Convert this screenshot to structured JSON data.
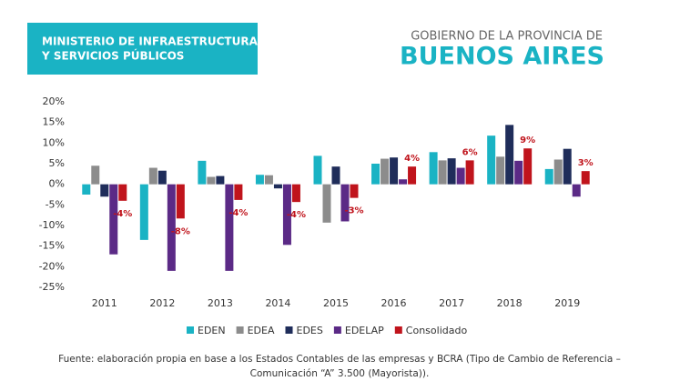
{
  "header": {
    "ministry": [
      "MINISTERIO DE INFRAESTRUCTURA",
      "Y SERVICIOS PÚBLICOS"
    ],
    "government": "GOBIERNO DE LA PROVINCIA DE",
    "province": "BUENOS AIRES"
  },
  "chart_data": {
    "type": "bar",
    "categories": [
      "2011",
      "2012",
      "2013",
      "2014",
      "2015",
      "2016",
      "2017",
      "2018",
      "2019"
    ],
    "series": [
      {
        "name": "EDEN",
        "color": "#1ab3c4",
        "values": [
          -2.5,
          -13.5,
          5.7,
          2.3,
          6.9,
          5,
          7.8,
          11.8,
          3.7
        ]
      },
      {
        "name": "EDEA",
        "color": "#8c8c8c",
        "values": [
          4.5,
          4,
          1.8,
          2.2,
          -9.3,
          6.2,
          5.8,
          6.7,
          6
        ]
      },
      {
        "name": "EDES",
        "color": "#1f2d5a",
        "values": [
          -3,
          3.3,
          2,
          -1,
          4.3,
          6.5,
          6.3,
          14.4,
          8.6
        ]
      },
      {
        "name": "EDELAP",
        "color": "#5b2a86",
        "values": [
          -17,
          -21,
          -21,
          -14.7,
          -9,
          1.2,
          4,
          5.7,
          -3
        ]
      },
      {
        "name": "Consolidado",
        "color": "#c0141c",
        "values": [
          -4,
          -8.3,
          -3.8,
          -4.3,
          -3.3,
          4.3,
          5.8,
          8.7,
          3.2
        ],
        "value_labels": [
          "-4%",
          "-8%",
          "-4%",
          "-4%",
          "-3%",
          "4%",
          "6%",
          "9%",
          "3%"
        ]
      }
    ],
    "ylim": [
      -25,
      20
    ],
    "yticks": [
      {
        "value": -25,
        "label": "-25%"
      },
      {
        "value": -20,
        "label": "-20%"
      },
      {
        "value": -15,
        "label": "-15%"
      },
      {
        "value": -10,
        "label": "-10%"
      },
      {
        "value": -5,
        "label": "-5%"
      },
      {
        "value": 0,
        "label": "0%"
      },
      {
        "value": 5,
        "label": "5%"
      },
      {
        "value": 10,
        "label": "10%"
      },
      {
        "value": 15,
        "label": "15%"
      },
      {
        "value": 20,
        "label": "20%"
      }
    ],
    "legend": "bottom"
  },
  "footer": [
    "Fuente: elaboración propia en base a los Estados Contables de las empresas y BCRA (Tipo de Cambio de Referencia –",
    "Comunicación “A” 3.500 (Mayorista))."
  ]
}
